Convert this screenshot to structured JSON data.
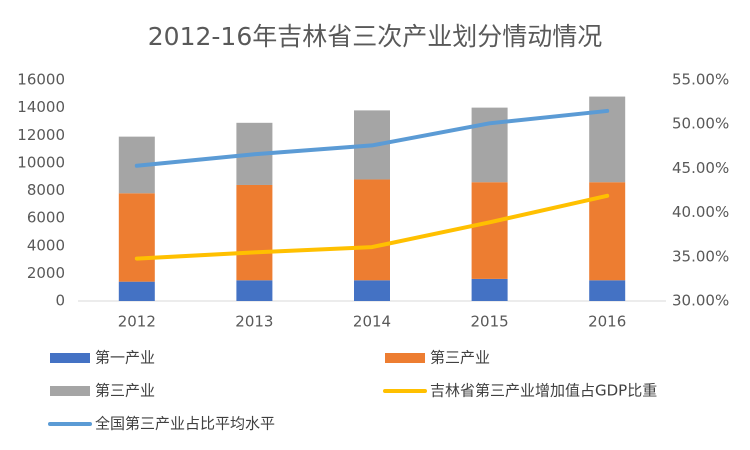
{
  "chart_data": {
    "type": "bar",
    "stacked": true,
    "title": "2012-16年吉林省三次产业划分情动情况",
    "categories": [
      "2012",
      "2013",
      "2014",
      "2015",
      "2016"
    ],
    "ylim": [
      0,
      16000
    ],
    "yticks": [
      0,
      2000,
      4000,
      6000,
      8000,
      10000,
      12000,
      14000,
      16000
    ],
    "y2lim": [
      30,
      55
    ],
    "y2ticks": [
      {
        "value": 30,
        "label": "30.00%"
      },
      {
        "value": 35,
        "label": "35.00%"
      },
      {
        "value": 40,
        "label": "40.00%"
      },
      {
        "value": 45,
        "label": "45.00%"
      },
      {
        "value": 50,
        "label": "50.00%"
      },
      {
        "value": 55,
        "label": "55.00%"
      }
    ],
    "grid": false,
    "series": [
      {
        "name": "第一产业",
        "type": "bar",
        "color": "#4472c4",
        "values": [
          1400,
          1500,
          1500,
          1600,
          1500
        ]
      },
      {
        "name": "第三产业",
        "type": "bar",
        "color": "#ed7d31",
        "values": [
          6400,
          6900,
          7300,
          7000,
          7100
        ]
      },
      {
        "name": "第三产业",
        "type": "bar",
        "color": "#a5a5a5",
        "values": [
          4100,
          4500,
          5000,
          5400,
          6200
        ]
      },
      {
        "name": "吉林省第三产业增加值占GDP比重",
        "type": "line",
        "axis": "y2",
        "color": "#ffc000",
        "values": [
          34.8,
          35.5,
          36.1,
          38.9,
          41.9
        ]
      },
      {
        "name": "全国第三产业占比平均水平",
        "type": "line",
        "axis": "y2",
        "color": "#5b9bd5",
        "values": [
          45.3,
          46.6,
          47.6,
          50.1,
          51.5
        ]
      }
    ]
  }
}
